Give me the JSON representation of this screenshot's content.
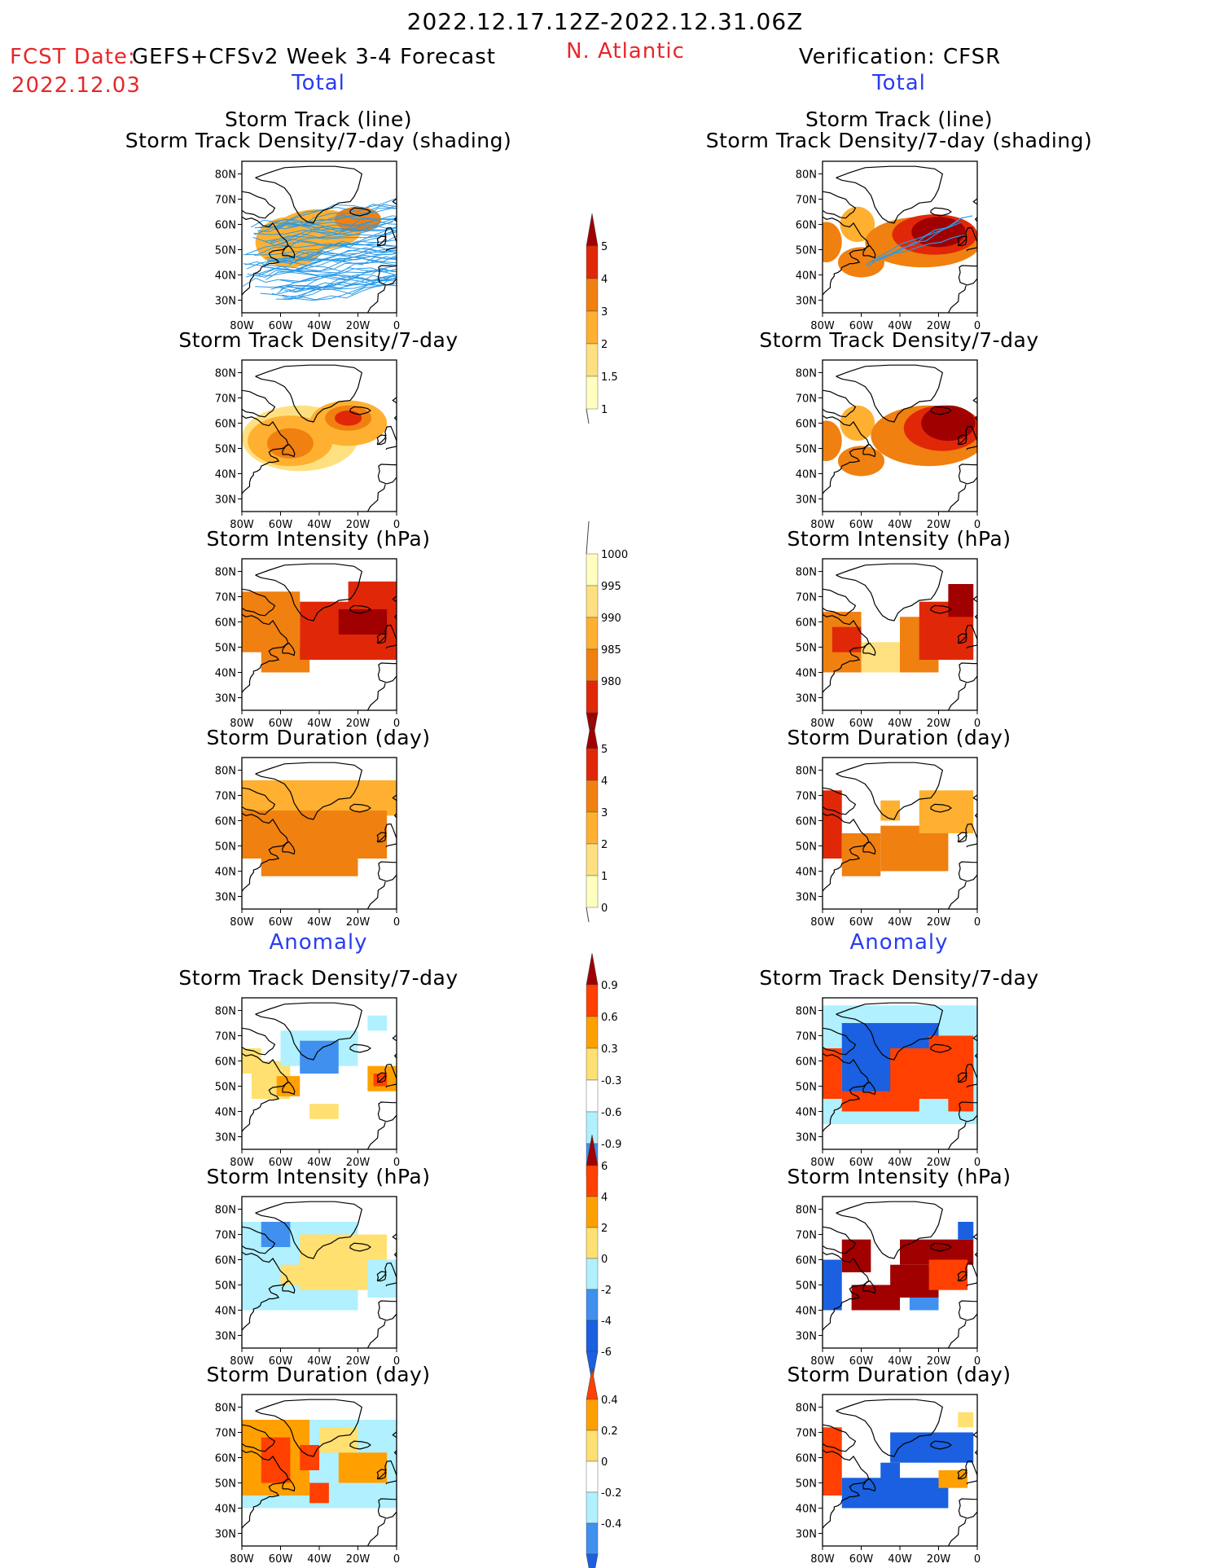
{
  "header": {
    "period": "2022.12.17.12Z-2022.12.31.06Z",
    "fcst_label": "FCST Date:",
    "forecast_name": "GEFS+CFSv2 Week 3-4 Forecast",
    "fcst_date": "2022.12.03",
    "region": "N. Atlantic",
    "verification": "Verification: CFSR",
    "total_left": "Total",
    "total_right": "Total",
    "anomaly_left": "Anomaly",
    "anomaly_right": "Anomaly"
  },
  "colors": {
    "warm": [
      "#ffffc0",
      "#ffe080",
      "#ffb030",
      "#f08010",
      "#e02808",
      "#a00000"
    ],
    "anom": [
      "#1a60e0",
      "#4090f0",
      "#b0f0ff",
      "#ffffff",
      "#ffe070",
      "#ffa000",
      "#ff4000",
      "#a00000"
    ],
    "track_line": "#2a9ae8",
    "land": "#000000"
  },
  "chart_data": [
    {
      "type": "heatmap",
      "id": "fcst-total-track",
      "title": [
        "Storm Track (line)",
        "Storm Track Density/7-day (shading)"
      ],
      "x_ticks": [
        "80W",
        "60W",
        "40W",
        "20W",
        "0"
      ],
      "y_ticks": [
        "80N",
        "70N",
        "60N",
        "50N",
        "40N",
        "30N"
      ],
      "xlim": [
        -80,
        0
      ],
      "ylim": [
        25,
        85
      ],
      "overlay": "storm-track-lines",
      "blobs": [
        {
          "lon": -55,
          "lat": 53,
          "rlon": 18,
          "rlat": 10,
          "level": 2
        },
        {
          "lon": -40,
          "lat": 58,
          "rlon": 22,
          "rlat": 8,
          "level": 2
        },
        {
          "lon": -20,
          "lat": 62,
          "rlon": 12,
          "rlat": 5,
          "level": 3
        }
      ]
    },
    {
      "type": "heatmap",
      "id": "fcst-total-density",
      "title": [
        "Storm Track Density/7-day"
      ],
      "x_ticks": [
        "80W",
        "60W",
        "40W",
        "20W",
        "0"
      ],
      "y_ticks": [
        "80N",
        "70N",
        "60N",
        "50N",
        "40N",
        "30N"
      ],
      "xlim": [
        -80,
        0
      ],
      "ylim": [
        25,
        85
      ],
      "blobs": [
        {
          "lon": -50,
          "lat": 54,
          "rlon": 30,
          "rlat": 13,
          "level": 1
        },
        {
          "lon": -55,
          "lat": 53,
          "rlon": 22,
          "rlat": 10,
          "level": 2
        },
        {
          "lon": -25,
          "lat": 60,
          "rlon": 20,
          "rlat": 9,
          "level": 2
        },
        {
          "lon": -55,
          "lat": 52,
          "rlon": 12,
          "rlat": 6,
          "level": 3
        },
        {
          "lon": -25,
          "lat": 62,
          "rlon": 12,
          "rlat": 5,
          "level": 3
        },
        {
          "lon": -25,
          "lat": 62,
          "rlon": 7,
          "rlat": 3,
          "level": 4
        }
      ]
    },
    {
      "type": "heatmap",
      "id": "fcst-total-intensity",
      "title": [
        "Storm Intensity (hPa)"
      ],
      "x_ticks": [
        "80W",
        "60W",
        "40W",
        "20W",
        "0"
      ],
      "y_ticks": [
        "80N",
        "70N",
        "60N",
        "50N",
        "40N",
        "30N"
      ],
      "xlim": [
        -80,
        0
      ],
      "ylim": [
        25,
        85
      ],
      "rects": [
        {
          "lon0": -80,
          "lon1": -50,
          "lat0": 48,
          "lat1": 72,
          "level": 3
        },
        {
          "lon0": -70,
          "lon1": -45,
          "lat0": 40,
          "lat1": 50,
          "level": 3
        },
        {
          "lon0": -50,
          "lon1": 0,
          "lat0": 45,
          "lat1": 68,
          "level": 4
        },
        {
          "lon0": -25,
          "lon1": 0,
          "lat0": 58,
          "lat1": 76,
          "level": 4
        },
        {
          "lon0": -30,
          "lon1": -5,
          "lat0": 55,
          "lat1": 65,
          "level": 5
        }
      ]
    },
    {
      "type": "heatmap",
      "id": "fcst-total-duration",
      "title": [
        "Storm Duration (day)"
      ],
      "x_ticks": [
        "80W",
        "60W",
        "40W",
        "20W",
        "0"
      ],
      "y_ticks": [
        "80N",
        "70N",
        "60N",
        "50N",
        "40N",
        "30N"
      ],
      "xlim": [
        -80,
        0
      ],
      "ylim": [
        25,
        85
      ],
      "rects": [
        {
          "lon0": -80,
          "lon1": 0,
          "lat0": 62,
          "lat1": 76,
          "level": 2
        },
        {
          "lon0": -80,
          "lon1": -5,
          "lat0": 45,
          "lat1": 64,
          "level": 3
        },
        {
          "lon0": -70,
          "lon1": -20,
          "lat0": 38,
          "lat1": 46,
          "level": 3
        }
      ]
    },
    {
      "type": "heatmap",
      "id": "obs-total-track",
      "title": [
        "Storm Track (line)",
        "Storm Track Density/7-day (shading)"
      ],
      "x_ticks": [
        "80W",
        "60W",
        "40W",
        "20W",
        "0"
      ],
      "y_ticks": [
        "80N",
        "70N",
        "60N",
        "50N",
        "40N",
        "30N"
      ],
      "xlim": [
        -80,
        0
      ],
      "ylim": [
        25,
        85
      ],
      "blobs": [
        {
          "lon": -62,
          "lat": 60,
          "rlon": 9,
          "rlat": 7,
          "level": 2
        },
        {
          "lon": -60,
          "lat": 45,
          "rlon": 12,
          "rlat": 6,
          "level": 3
        },
        {
          "lon": -78,
          "lat": 53,
          "rlon": 8,
          "rlat": 8,
          "level": 3
        },
        {
          "lon": -28,
          "lat": 53,
          "rlon": 30,
          "rlat": 10,
          "level": 3
        },
        {
          "lon": -22,
          "lat": 56,
          "rlon": 22,
          "rlat": 8,
          "level": 4
        },
        {
          "lon": -20,
          "lat": 57,
          "rlon": 14,
          "rlat": 6,
          "level": 5
        }
      ]
    },
    {
      "type": "heatmap",
      "id": "obs-total-density",
      "title": [
        "Storm Track Density/7-day"
      ],
      "x_ticks": [
        "80W",
        "60W",
        "40W",
        "20W",
        "0"
      ],
      "y_ticks": [
        "80N",
        "70N",
        "60N",
        "50N",
        "40N",
        "30N"
      ],
      "xlim": [
        -80,
        0
      ],
      "ylim": [
        25,
        85
      ],
      "blobs": [
        {
          "lon": -62,
          "lat": 60,
          "rlon": 9,
          "rlat": 7,
          "level": 2
        },
        {
          "lon": -60,
          "lat": 45,
          "rlon": 12,
          "rlat": 6,
          "level": 3
        },
        {
          "lon": -78,
          "lat": 53,
          "rlon": 8,
          "rlat": 8,
          "level": 3
        },
        {
          "lon": -25,
          "lat": 55,
          "rlon": 30,
          "rlat": 12,
          "level": 3
        },
        {
          "lon": -18,
          "lat": 58,
          "rlon": 20,
          "rlat": 9,
          "level": 4
        },
        {
          "lon": -15,
          "lat": 60,
          "rlon": 14,
          "rlat": 7,
          "level": 5
        }
      ]
    },
    {
      "type": "heatmap",
      "id": "obs-total-intensity",
      "title": [
        "Storm Intensity (hPa)"
      ],
      "x_ticks": [
        "80W",
        "60W",
        "40W",
        "20W",
        "0"
      ],
      "y_ticks": [
        "80N",
        "70N",
        "60N",
        "50N",
        "40N",
        "30N"
      ],
      "xlim": [
        -80,
        0
      ],
      "ylim": [
        25,
        85
      ],
      "rects": [
        {
          "lon0": -80,
          "lon1": -60,
          "lat0": 40,
          "lat1": 64,
          "level": 3
        },
        {
          "lon0": -75,
          "lon1": -60,
          "lat0": 48,
          "lat1": 58,
          "level": 4
        },
        {
          "lon0": -60,
          "lon1": -40,
          "lat0": 40,
          "lat1": 52,
          "level": 1
        },
        {
          "lon0": -40,
          "lon1": -20,
          "lat0": 40,
          "lat1": 62,
          "level": 3
        },
        {
          "lon0": -30,
          "lon1": -2,
          "lat0": 45,
          "lat1": 68,
          "level": 4
        },
        {
          "lon0": -15,
          "lon1": -2,
          "lat0": 62,
          "lat1": 75,
          "level": 5
        }
      ]
    },
    {
      "type": "heatmap",
      "id": "obs-total-duration",
      "title": [
        "Storm Duration (day)"
      ],
      "x_ticks": [
        "80W",
        "60W",
        "40W",
        "20W",
        "0"
      ],
      "y_ticks": [
        "80N",
        "70N",
        "60N",
        "50N",
        "40N",
        "30N"
      ],
      "xlim": [
        -80,
        0
      ],
      "ylim": [
        25,
        85
      ],
      "rects": [
        {
          "lon0": -80,
          "lon1": -70,
          "lat0": 45,
          "lat1": 72,
          "level": 4
        },
        {
          "lon0": -70,
          "lon1": -50,
          "lat0": 38,
          "lat1": 55,
          "level": 3
        },
        {
          "lon0": -50,
          "lon1": -15,
          "lat0": 40,
          "lat1": 58,
          "level": 3
        },
        {
          "lon0": -30,
          "lon1": -2,
          "lat0": 55,
          "lat1": 72,
          "level": 2
        },
        {
          "lon0": -50,
          "lon1": -40,
          "lat0": 60,
          "lat1": 68,
          "level": 2
        }
      ]
    },
    {
      "type": "heatmap",
      "id": "fcst-anom-density",
      "title": [
        "Storm Track Density/7-day"
      ],
      "x_ticks": [
        "80W",
        "60W",
        "40W",
        "20W",
        "0"
      ],
      "y_ticks": [
        "80N",
        "70N",
        "60N",
        "50N",
        "40N",
        "30N"
      ],
      "xlim": [
        -80,
        0
      ],
      "ylim": [
        25,
        85
      ],
      "rects": [
        {
          "lon0": -75,
          "lon1": -55,
          "lat0": 45,
          "lat1": 60,
          "level": 4
        },
        {
          "lon0": -62,
          "lon1": -50,
          "lat0": 46,
          "lat1": 54,
          "level": 5
        },
        {
          "lon0": -80,
          "lon1": -70,
          "lat0": 55,
          "lat1": 65,
          "level": 4
        },
        {
          "lon0": -60,
          "lon1": -20,
          "lat0": 58,
          "lat1": 72,
          "level": 2
        },
        {
          "lon0": -50,
          "lon1": -30,
          "lat0": 55,
          "lat1": 68,
          "level": 1
        },
        {
          "lon0": -15,
          "lon1": -5,
          "lat0": 72,
          "lat1": 78,
          "level": 2
        },
        {
          "lon0": -15,
          "lon1": 0,
          "lat0": 48,
          "lat1": 58,
          "level": 5
        },
        {
          "lon0": -12,
          "lon1": -5,
          "lat0": 50,
          "lat1": 55,
          "level": 6
        },
        {
          "lon0": -45,
          "lon1": -30,
          "lat0": 37,
          "lat1": 43,
          "level": 4
        }
      ]
    },
    {
      "type": "heatmap",
      "id": "fcst-anom-intensity",
      "title": [
        "Storm Intensity (hPa)"
      ],
      "x_ticks": [
        "80W",
        "60W",
        "40W",
        "20W",
        "0"
      ],
      "y_ticks": [
        "80N",
        "70N",
        "60N",
        "50N",
        "40N",
        "30N"
      ],
      "xlim": [
        -80,
        0
      ],
      "ylim": [
        25,
        85
      ],
      "rects": [
        {
          "lon0": -80,
          "lon1": -20,
          "lat0": 40,
          "lat1": 75,
          "level": 2
        },
        {
          "lon0": -70,
          "lon1": -55,
          "lat0": 65,
          "lat1": 75,
          "level": 1
        },
        {
          "lon0": -50,
          "lon1": -5,
          "lat0": 48,
          "lat1": 70,
          "level": 4
        },
        {
          "lon0": -60,
          "lon1": -40,
          "lat0": 50,
          "lat1": 58,
          "level": 4
        },
        {
          "lon0": -15,
          "lon1": 0,
          "lat0": 45,
          "lat1": 60,
          "level": 2
        }
      ]
    },
    {
      "type": "heatmap",
      "id": "fcst-anom-duration",
      "title": [
        "Storm Duration (day)"
      ],
      "x_ticks": [
        "80W",
        "60W",
        "40W",
        "20W",
        "0"
      ],
      "y_ticks": [
        "80N",
        "70N",
        "60N",
        "50N",
        "40N",
        "30N"
      ],
      "xlim": [
        -80,
        0
      ],
      "ylim": [
        25,
        85
      ],
      "rects": [
        {
          "lon0": -80,
          "lon1": 0,
          "lat0": 40,
          "lat1": 75,
          "level": 2
        },
        {
          "lon0": -80,
          "lon1": -45,
          "lat0": 45,
          "lat1": 75,
          "level": 5
        },
        {
          "lon0": -70,
          "lon1": -55,
          "lat0": 50,
          "lat1": 68,
          "level": 6
        },
        {
          "lon0": -50,
          "lon1": -40,
          "lat0": 55,
          "lat1": 65,
          "level": 6
        },
        {
          "lon0": -30,
          "lon1": -5,
          "lat0": 50,
          "lat1": 62,
          "level": 5
        },
        {
          "lon0": -45,
          "lon1": -35,
          "lat0": 42,
          "lat1": 50,
          "level": 6
        },
        {
          "lon0": -40,
          "lon1": -20,
          "lat0": 62,
          "lat1": 72,
          "level": 4
        }
      ]
    },
    {
      "type": "heatmap",
      "id": "obs-anom-density",
      "title": [
        "Storm Track Density/7-day"
      ],
      "x_ticks": [
        "80W",
        "60W",
        "40W",
        "20W",
        "0"
      ],
      "y_ticks": [
        "80N",
        "70N",
        "60N",
        "50N",
        "40N",
        "30N"
      ],
      "xlim": [
        -80,
        0
      ],
      "ylim": [
        25,
        85
      ],
      "rects": [
        {
          "lon0": -80,
          "lon1": 0,
          "lat0": 35,
          "lat1": 82,
          "level": 2
        },
        {
          "lon0": -70,
          "lon1": -20,
          "lat0": 45,
          "lat1": 75,
          "level": 0
        },
        {
          "lon0": -45,
          "lon1": -2,
          "lat0": 40,
          "lat1": 65,
          "level": 6
        },
        {
          "lon0": -25,
          "lon1": -2,
          "lat0": 55,
          "lat1": 70,
          "level": 6
        },
        {
          "lon0": -80,
          "lon1": -70,
          "lat0": 45,
          "lat1": 65,
          "level": 6
        },
        {
          "lon0": -70,
          "lon1": -40,
          "lat0": 40,
          "lat1": 48,
          "level": 6
        },
        {
          "lon0": -30,
          "lon1": -15,
          "lat0": 38,
          "lat1": 45,
          "level": 2
        }
      ]
    },
    {
      "type": "heatmap",
      "id": "obs-anom-intensity",
      "title": [
        "Storm Intensity (hPa)"
      ],
      "x_ticks": [
        "80W",
        "60W",
        "40W",
        "20W",
        "0"
      ],
      "y_ticks": [
        "80N",
        "70N",
        "60N",
        "50N",
        "40N",
        "30N"
      ],
      "xlim": [
        -80,
        0
      ],
      "ylim": [
        25,
        85
      ],
      "rects": [
        {
          "lon0": -80,
          "lon1": -70,
          "lat0": 40,
          "lat1": 60,
          "level": 0
        },
        {
          "lon0": -70,
          "lon1": -55,
          "lat0": 55,
          "lat1": 68,
          "level": 7
        },
        {
          "lon0": -65,
          "lon1": -40,
          "lat0": 40,
          "lat1": 50,
          "level": 7
        },
        {
          "lon0": -45,
          "lon1": -20,
          "lat0": 45,
          "lat1": 58,
          "level": 7
        },
        {
          "lon0": -40,
          "lon1": -2,
          "lat0": 58,
          "lat1": 68,
          "level": 7
        },
        {
          "lon0": -25,
          "lon1": -5,
          "lat0": 48,
          "lat1": 60,
          "level": 6
        },
        {
          "lon0": -10,
          "lon1": -2,
          "lat0": 68,
          "lat1": 75,
          "level": 0
        },
        {
          "lon0": -35,
          "lon1": -20,
          "lat0": 40,
          "lat1": 45,
          "level": 1
        }
      ]
    },
    {
      "type": "heatmap",
      "id": "obs-anom-duration",
      "title": [
        "Storm Duration (day)"
      ],
      "x_ticks": [
        "80W",
        "60W",
        "40W",
        "20W",
        "0"
      ],
      "y_ticks": [
        "80N",
        "70N",
        "60N",
        "50N",
        "40N",
        "30N"
      ],
      "xlim": [
        -80,
        0
      ],
      "ylim": [
        25,
        85
      ],
      "rects": [
        {
          "lon0": -80,
          "lon1": -70,
          "lat0": 45,
          "lat1": 72,
          "level": 6
        },
        {
          "lon0": -45,
          "lon1": -2,
          "lat0": 58,
          "lat1": 70,
          "level": 0
        },
        {
          "lon0": -70,
          "lon1": -15,
          "lat0": 40,
          "lat1": 52,
          "level": 0
        },
        {
          "lon0": -50,
          "lon1": -40,
          "lat0": 48,
          "lat1": 58,
          "level": 0
        },
        {
          "lon0": -20,
          "lon1": -5,
          "lat0": 48,
          "lat1": 55,
          "level": 5
        },
        {
          "lon0": -10,
          "lon1": -2,
          "lat0": 72,
          "lat1": 78,
          "level": 4
        }
      ]
    }
  ],
  "colorbars": [
    {
      "id": "cb-total-density",
      "labels": [
        "5",
        "4",
        "3",
        "2",
        "1.5",
        "1"
      ]
    },
    {
      "id": "cb-total-intensity",
      "labels": [
        "1000",
        "995",
        "990",
        "985",
        "980"
      ]
    },
    {
      "id": "cb-total-duration",
      "labels": [
        "5",
        "4",
        "3",
        "2",
        "1",
        "0"
      ]
    },
    {
      "id": "cb-anom-density",
      "labels": [
        "0.9",
        "0.6",
        "0.3",
        "-0.3",
        "-0.6",
        "-0.9"
      ]
    },
    {
      "id": "cb-anom-intensity",
      "labels": [
        "6",
        "4",
        "2",
        "0",
        "-2",
        "-4",
        "-6"
      ]
    },
    {
      "id": "cb-anom-duration",
      "labels": [
        "0.4",
        "0.2",
        "0",
        "-0.2",
        "-0.4"
      ]
    }
  ]
}
